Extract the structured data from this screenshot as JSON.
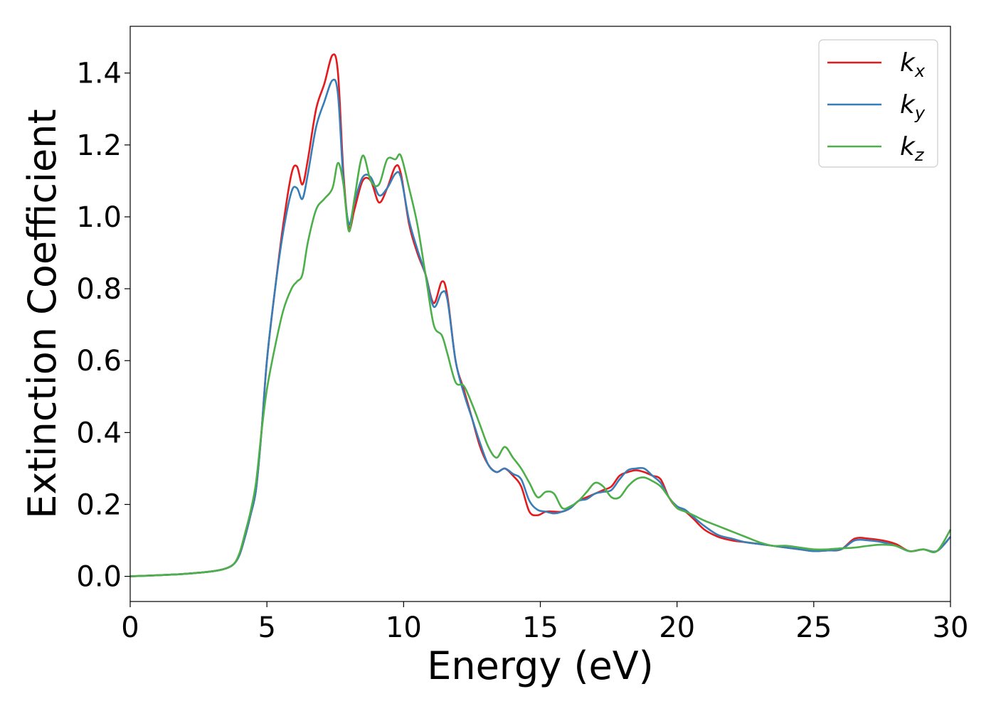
{
  "chart_data": {
    "type": "line",
    "title": "",
    "xlabel": "Energy (eV)",
    "ylabel": "Extinction Coefficient",
    "xlim": [
      0,
      30
    ],
    "ylim": [
      -0.07,
      1.53
    ],
    "xticks": [
      0,
      5,
      10,
      15,
      20,
      25,
      30
    ],
    "xtick_labels": [
      "0",
      "5",
      "10",
      "15",
      "20",
      "25",
      "30"
    ],
    "yticks": [
      0.0,
      0.2,
      0.4,
      0.6,
      0.8,
      1.0,
      1.2,
      1.4
    ],
    "ytick_labels": [
      "0.0",
      "0.2",
      "0.4",
      "0.6",
      "0.8",
      "1.0",
      "1.2",
      "1.4"
    ],
    "grid": false,
    "legend_position": "top-right",
    "series": [
      {
        "name": "k_x",
        "label_base": "k",
        "label_sub": "x",
        "color": "#e41a1c",
        "x": [
          0,
          1,
          2,
          3,
          3.5,
          3.8,
          4.0,
          4.2,
          4.4,
          4.6,
          4.8,
          5.0,
          5.3,
          5.6,
          5.9,
          6.1,
          6.3,
          6.5,
          6.8,
          7.1,
          7.4,
          7.6,
          7.8,
          8.0,
          8.2,
          8.5,
          8.8,
          9.1,
          9.4,
          9.7,
          9.9,
          10.2,
          10.5,
          10.8,
          11.1,
          11.4,
          11.6,
          11.9,
          12.2,
          12.5,
          12.8,
          13.1,
          13.4,
          13.7,
          14.0,
          14.3,
          14.6,
          14.9,
          15.2,
          15.5,
          15.8,
          16.1,
          16.4,
          16.7,
          17.0,
          17.3,
          17.6,
          17.9,
          18.2,
          18.5,
          18.8,
          19.1,
          19.4,
          19.7,
          20.0,
          20.3,
          20.6,
          21.0,
          21.5,
          22.0,
          22.5,
          23.0,
          23.5,
          24.0,
          24.5,
          25.0,
          25.5,
          26.0,
          26.5,
          27.0,
          27.5,
          28.0,
          28.5,
          29.0,
          29.5,
          30.0
        ],
        "y": [
          0.0,
          0.003,
          0.007,
          0.014,
          0.022,
          0.035,
          0.06,
          0.11,
          0.17,
          0.24,
          0.4,
          0.6,
          0.8,
          0.98,
          1.12,
          1.14,
          1.09,
          1.16,
          1.3,
          1.37,
          1.45,
          1.4,
          1.12,
          0.97,
          1.02,
          1.1,
          1.1,
          1.04,
          1.08,
          1.14,
          1.12,
          0.98,
          0.9,
          0.84,
          0.76,
          0.82,
          0.78,
          0.6,
          0.52,
          0.44,
          0.36,
          0.31,
          0.29,
          0.3,
          0.28,
          0.25,
          0.18,
          0.17,
          0.18,
          0.18,
          0.18,
          0.19,
          0.21,
          0.22,
          0.23,
          0.24,
          0.25,
          0.28,
          0.29,
          0.295,
          0.29,
          0.28,
          0.27,
          0.22,
          0.19,
          0.18,
          0.16,
          0.13,
          0.11,
          0.1,
          0.095,
          0.09,
          0.085,
          0.08,
          0.075,
          0.07,
          0.072,
          0.075,
          0.105,
          0.105,
          0.1,
          0.09,
          0.07,
          0.075,
          0.07,
          0.11
        ]
      },
      {
        "name": "k_y",
        "label_base": "k",
        "label_sub": "y",
        "color": "#377eb8",
        "x": [
          0,
          1,
          2,
          3,
          3.5,
          3.8,
          4.0,
          4.2,
          4.4,
          4.6,
          4.8,
          5.0,
          5.3,
          5.6,
          5.9,
          6.1,
          6.3,
          6.5,
          6.8,
          7.1,
          7.4,
          7.6,
          7.8,
          8.0,
          8.2,
          8.5,
          8.8,
          9.1,
          9.4,
          9.7,
          9.9,
          10.2,
          10.5,
          10.8,
          11.1,
          11.4,
          11.6,
          11.9,
          12.2,
          12.5,
          12.8,
          13.1,
          13.4,
          13.7,
          14.0,
          14.3,
          14.6,
          14.9,
          15.2,
          15.5,
          15.8,
          16.1,
          16.4,
          16.7,
          17.0,
          17.3,
          17.6,
          17.9,
          18.2,
          18.5,
          18.8,
          19.1,
          19.4,
          19.7,
          20.0,
          20.3,
          20.6,
          21.0,
          21.5,
          22.0,
          22.5,
          23.0,
          23.5,
          24.0,
          24.5,
          25.0,
          25.5,
          26.0,
          26.5,
          27.0,
          27.5,
          28.0,
          28.5,
          29.0,
          29.5,
          30.0
        ],
        "y": [
          0.0,
          0.003,
          0.007,
          0.014,
          0.022,
          0.035,
          0.06,
          0.11,
          0.17,
          0.24,
          0.4,
          0.6,
          0.8,
          0.96,
          1.07,
          1.08,
          1.05,
          1.12,
          1.25,
          1.32,
          1.38,
          1.34,
          1.1,
          0.98,
          1.04,
          1.11,
          1.11,
          1.06,
          1.08,
          1.12,
          1.11,
          0.99,
          0.91,
          0.84,
          0.75,
          0.79,
          0.77,
          0.6,
          0.51,
          0.44,
          0.37,
          0.31,
          0.29,
          0.3,
          0.285,
          0.27,
          0.21,
          0.185,
          0.18,
          0.175,
          0.18,
          0.19,
          0.21,
          0.215,
          0.23,
          0.235,
          0.24,
          0.27,
          0.295,
          0.3,
          0.3,
          0.28,
          0.26,
          0.22,
          0.195,
          0.185,
          0.165,
          0.14,
          0.115,
          0.105,
          0.095,
          0.09,
          0.085,
          0.08,
          0.075,
          0.07,
          0.072,
          0.075,
          0.1,
          0.1,
          0.095,
          0.085,
          0.07,
          0.075,
          0.07,
          0.11
        ]
      },
      {
        "name": "k_z",
        "label_base": "k",
        "label_sub": "z",
        "color": "#4daf4a",
        "x": [
          0,
          1,
          2,
          3,
          3.5,
          3.8,
          4.0,
          4.2,
          4.4,
          4.6,
          4.8,
          5.0,
          5.3,
          5.6,
          5.9,
          6.1,
          6.3,
          6.5,
          6.8,
          7.1,
          7.4,
          7.6,
          7.8,
          8.0,
          8.2,
          8.5,
          8.8,
          9.1,
          9.4,
          9.7,
          9.9,
          10.2,
          10.5,
          10.8,
          11.1,
          11.4,
          11.6,
          11.9,
          12.2,
          12.5,
          12.8,
          13.1,
          13.4,
          13.7,
          14.0,
          14.3,
          14.6,
          14.9,
          15.2,
          15.5,
          15.8,
          16.1,
          16.4,
          16.7,
          17.0,
          17.3,
          17.6,
          17.9,
          18.2,
          18.5,
          18.8,
          19.1,
          19.4,
          19.7,
          20.0,
          20.3,
          20.6,
          21.0,
          21.5,
          22.0,
          22.5,
          23.0,
          23.5,
          24.0,
          24.5,
          25.0,
          25.5,
          26.0,
          26.5,
          27.0,
          27.5,
          28.0,
          28.5,
          29.0,
          29.5,
          30.0
        ],
        "y": [
          0.0,
          0.003,
          0.007,
          0.014,
          0.022,
          0.035,
          0.065,
          0.12,
          0.18,
          0.26,
          0.4,
          0.52,
          0.64,
          0.74,
          0.8,
          0.82,
          0.84,
          0.93,
          1.02,
          1.05,
          1.08,
          1.15,
          1.09,
          0.96,
          1.05,
          1.17,
          1.1,
          1.09,
          1.16,
          1.16,
          1.17,
          1.08,
          0.98,
          0.84,
          0.7,
          0.67,
          0.62,
          0.54,
          0.53,
          0.48,
          0.42,
          0.36,
          0.33,
          0.36,
          0.33,
          0.3,
          0.26,
          0.22,
          0.235,
          0.23,
          0.19,
          0.195,
          0.21,
          0.235,
          0.26,
          0.25,
          0.22,
          0.22,
          0.25,
          0.27,
          0.275,
          0.265,
          0.25,
          0.22,
          0.19,
          0.18,
          0.17,
          0.155,
          0.14,
          0.125,
          0.11,
          0.095,
          0.085,
          0.085,
          0.08,
          0.075,
          0.075,
          0.078,
          0.08,
          0.085,
          0.088,
          0.085,
          0.07,
          0.075,
          0.07,
          0.13
        ]
      }
    ]
  }
}
